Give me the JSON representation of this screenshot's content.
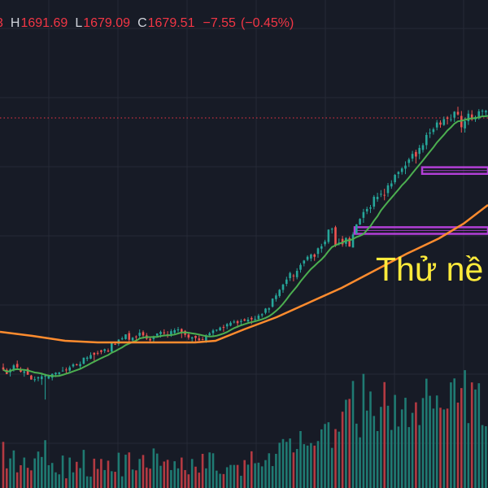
{
  "header": {
    "open_value_partial": "3",
    "high_label": "H",
    "high_value": "1691.69",
    "low_label": "L",
    "low_value": "1679.09",
    "close_label": "C",
    "close_value": "1679.51",
    "change": "−7.55",
    "change_percent": "(−0.45%)"
  },
  "annotation": "Thử nề",
  "colors": {
    "background": "#171b26",
    "grid": "#262a36",
    "up": "#26a69a",
    "down": "#ef5350",
    "up_volume": "#1f7a72",
    "down_volume": "#b33a42",
    "ma_short": "#4caf50",
    "ma_long": "#ff8c2e",
    "zone": "#b23fd6",
    "price_line": "#f23645",
    "annotation": "#ffeb3b"
  },
  "chart_data": {
    "type": "candlestick",
    "title": "",
    "ohlc_last": {
      "high": 1691.69,
      "low": 1679.09,
      "close": 1679.51,
      "change": -7.55,
      "change_percent": -0.45
    },
    "ylim": [
      1170,
      1720
    ],
    "current_price_line": 1679.51,
    "series": [
      {
        "name": "",
        "type": "candlestick",
        "candles": [
          [
            1203.27,
            1210.94,
            1196.28,
            1198.93
          ],
          [
            1198.41,
            1201.74,
            1189.82,
            1190.22
          ],
          [
            1193.58,
            1201.5,
            1185.33,
            1199.01
          ],
          [
            1198.55,
            1209.84,
            1194.96,
            1207.26
          ],
          [
            1210.05,
            1216.72,
            1200.72,
            1203.42
          ],
          [
            1200.3,
            1203.76,
            1193.23,
            1194.66
          ],
          [
            1192.47,
            1197.79,
            1184.96,
            1195.5
          ],
          [
            1200.39,
            1203.42,
            1188.61,
            1188.83
          ],
          [
            1187.31,
            1188.55,
            1179.15,
            1179.37
          ],
          [
            1179.81,
            1185.42,
            1174.75,
            1179.96
          ],
          [
            1181.55,
            1185.48,
            1175.94,
            1183.94
          ],
          [
            1180.14,
            1192.43,
            1168.87,
            1185.6
          ],
          [
            1185.49,
            1190.92,
            1140.0,
            1186.57
          ],
          [
            1181.35,
            1189.1,
            1180.04,
            1187.86
          ],
          [
            1183.06,
            1191.48,
            1177.61,
            1190.42
          ],
          [
            1189.68,
            1193.74,
            1184.26,
            1192.69
          ],
          [
            1190.32,
            1194.42,
            1187.25,
            1193.25
          ],
          [
            1196.44,
            1204.28,
            1195.28,
            1196.89
          ],
          [
            1198.99,
            1203.15,
            1191.09,
            1198.89
          ],
          [
            1197.0,
            1206.75,
            1194.75,
            1203.33
          ],
          [
            1205.27,
            1211.52,
            1202.73,
            1209.06
          ],
          [
            1209.13,
            1210.94,
            1206.7,
            1208.08
          ],
          [
            1205.68,
            1214.8,
            1199.66,
            1209.81
          ],
          [
            1210.44,
            1222.64,
            1209.12,
            1222.35
          ],
          [
            1220.11,
            1225.34,
            1215.41,
            1222.48
          ],
          [
            1220.51,
            1232.85,
            1219.37,
            1227.53
          ],
          [
            1232.06,
            1232.89,
            1216.42,
            1228.1
          ],
          [
            1231.88,
            1235.97,
            1227.03,
            1230.73
          ],
          [
            1236.93,
            1237.91,
            1229.12,
            1233.7
          ],
          [
            1235.7,
            1240.22,
            1231.49,
            1238.93
          ],
          [
            1236.31,
            1240.45,
            1233.02,
            1234.5
          ],
          [
            1234.29,
            1252.54,
            1232.96,
            1250.79
          ],
          [
            1249.31,
            1254.15,
            1247.4,
            1249.19
          ],
          [
            1249.63,
            1258.89,
            1245.6,
            1257.74
          ],
          [
            1258.44,
            1263.97,
            1256.8,
            1260.35
          ],
          [
            1259.01,
            1268.34,
            1257.77,
            1268.25
          ],
          [
            1270.66,
            1275.32,
            1253.29,
            1257.62
          ],
          [
            1256.48,
            1263.05,
            1252.45,
            1261.54
          ],
          [
            1264.07,
            1266.24,
            1251.8,
            1263.57
          ],
          [
            1265.41,
            1277.93,
            1260.48,
            1271.4
          ],
          [
            1272.64,
            1275.98,
            1259.58,
            1266.19
          ],
          [
            1266.15,
            1270.89,
            1257.23,
            1259.61
          ],
          [
            1259.5,
            1263.39,
            1253.76,
            1256.31
          ],
          [
            1259.05,
            1265.77,
            1251.71,
            1263.82
          ],
          [
            1265.72,
            1270.3,
            1262.42,
            1269.91
          ],
          [
            1268.69,
            1275.65,
            1261.99,
            1273.19
          ],
          [
            1272.08,
            1278.18,
            1265.09,
            1270.41
          ],
          [
            1268.14,
            1274.54,
            1261.63,
            1267.67
          ],
          [
            1268.45,
            1278.52,
            1263.33,
            1274.49
          ],
          [
            1271.2,
            1280.18,
            1268.09,
            1276.37
          ],
          [
            1276.23,
            1282.72,
            1272.48,
            1278.02
          ],
          [
            1278.73,
            1280.13,
            1260.9,
            1273.04
          ],
          [
            1274.96,
            1276.75,
            1262.73,
            1267.3
          ],
          [
            1267.92,
            1272.82,
            1257.87,
            1262.07
          ],
          [
            1259.87,
            1263.78,
            1250.84,
            1262.41
          ],
          [
            1265.21,
            1266.05,
            1254.57,
            1261.03
          ],
          [
            1260.29,
            1266.63,
            1255.36,
            1256.65
          ],
          [
            1258.85,
            1263.24,
            1256.35,
            1258.18
          ],
          [
            1255.14,
            1268.52,
            1251.49,
            1265.29
          ],
          [
            1266.79,
            1273.2,
            1263.48,
            1270.32
          ],
          [
            1270.75,
            1278.72,
            1264.84,
            1275.83
          ],
          [
            1275.84,
            1277.91,
            1273.51,
            1277.36
          ],
          [
            1276.12,
            1283.48,
            1275.1,
            1281.72
          ],
          [
            1282.71,
            1287.06,
            1273.4,
            1281.67
          ],
          [
            1283.92,
            1290.48,
            1278.34,
            1288.45
          ],
          [
            1285.34,
            1294.25,
            1284.1,
            1291.16
          ],
          [
            1292.31,
            1296.72,
            1289.69,
            1293.3
          ],
          [
            1294.21,
            1296.54,
            1281.37,
            1290.28
          ],
          [
            1292.68,
            1298.42,
            1286.2,
            1294.55
          ],
          [
            1297.7,
            1299.69,
            1293.92,
            1295.27
          ],
          [
            1293.71,
            1302.02,
            1290.76,
            1297.26
          ],
          [
            1300.51,
            1303.68,
            1288.1,
            1297.71
          ],
          [
            1297.58,
            1304.64,
            1293.21,
            1298.54
          ],
          [
            1298.42,
            1308.66,
            1297.16,
            1305.13
          ],
          [
            1305.57,
            1309.87,
            1301.53,
            1307.91
          ],
          [
            1310.73,
            1319.98,
            1307.55,
            1318.94
          ],
          [
            1316.84,
            1321.42,
            1310.64,
            1319.37
          ],
          [
            1322.71,
            1339.14,
            1320.82,
            1338.53
          ],
          [
            1337.6,
            1349.12,
            1332.66,
            1344.86
          ],
          [
            1343.69,
            1357.47,
            1340.45,
            1355.87
          ],
          [
            1355.68,
            1367.71,
            1350.05,
            1366.11
          ],
          [
            1367.53,
            1381.62,
            1362.68,
            1376.1
          ],
          [
            1378.84,
            1391.48,
            1373.21,
            1388.87
          ],
          [
            1383.94,
            1387.14,
            1372.59,
            1382.72
          ],
          [
            1380.7,
            1398.28,
            1376.53,
            1393.19
          ],
          [
            1395.33,
            1408.42,
            1389.67,
            1404.78
          ],
          [
            1407.75,
            1414.55,
            1401.98,
            1413.44
          ],
          [
            1415.01,
            1423.77,
            1412.23,
            1420.83
          ],
          [
            1417.54,
            1427.19,
            1411.93,
            1425.26
          ],
          [
            1425.38,
            1427.41,
            1412.8,
            1420.76
          ],
          [
            1426.59,
            1439.08,
            1418.94,
            1437.55
          ],
          [
            1436.82,
            1446.35,
            1428.92,
            1441.54
          ],
          [
            1445.44,
            1454.27,
            1441.07,
            1450.7
          ],
          [
            1450.01,
            1474.95,
            1446.45,
            1474.15
          ],
          [
            1474.25,
            1478.27,
            1466.51,
            1475.93
          ],
          [
            1479.01,
            1482.08,
            1440.12,
            1443.91
          ],
          [
            1447.24,
            1456.81,
            1443.12,
            1448.77
          ],
          [
            1456.09,
            1461.76,
            1440.61,
            1445.22
          ],
          [
            1446.33,
            1459.46,
            1440.63,
            1457.92
          ],
          [
            1457.36,
            1460.79,
            1440.68,
            1440.93
          ],
          [
            1439.13,
            1469.18,
            1438.74,
            1464.88
          ],
          [
            1467.24,
            1485.23,
            1465.31,
            1484.55
          ],
          [
            1484.51,
            1496.73,
            1483.08,
            1495.36
          ],
          [
            1497.48,
            1515.09,
            1487.56,
            1508.81
          ],
          [
            1510.14,
            1519.28,
            1504.75,
            1514.87
          ],
          [
            1515.56,
            1522.81,
            1506.91,
            1517.93
          ],
          [
            1519.59,
            1542.2,
            1514.21,
            1538.88
          ],
          [
            1534.14,
            1546.75,
            1529.06,
            1538.85
          ],
          [
            1543.64,
            1552.02,
            1538.34,
            1544.64
          ],
          [
            1542.67,
            1554.64,
            1531.93,
            1541.19
          ],
          [
            1546.22,
            1565.96,
            1539.09,
            1561.4
          ],
          [
            1559.17,
            1571.42,
            1554.59,
            1565.14
          ],
          [
            1567.52,
            1583.76,
            1563.64,
            1581.96
          ],
          [
            1583.74,
            1589.41,
            1575.27,
            1587.67
          ],
          [
            1587.7,
            1597.26,
            1582.52,
            1594.61
          ],
          [
            1594.21,
            1608.57,
            1583.44,
            1600.24
          ],
          [
            1605.46,
            1615.69,
            1597.76,
            1612.28
          ],
          [
            1614.08,
            1629.2,
            1608.29,
            1623.25
          ],
          [
            1627.05,
            1631.45,
            1604.34,
            1618.03
          ],
          [
            1623.32,
            1640.94,
            1612.67,
            1634.98
          ],
          [
            1631.04,
            1644.59,
            1626.09,
            1640.43
          ],
          [
            1640.51,
            1665.46,
            1632.37,
            1660.52
          ],
          [
            1663.22,
            1673.06,
            1654.5,
            1665.14
          ],
          [
            1666.28,
            1675.24,
            1661.17,
            1671.79
          ],
          [
            1675.26,
            1689.98,
            1669.62,
            1685.03
          ],
          [
            1684.98,
            1689.49,
            1674.72,
            1680.73
          ],
          [
            1680.18,
            1696.91,
            1678.39,
            1691.68
          ],
          [
            1695.06,
            1697.74,
            1681.18,
            1692.36
          ],
          [
            1690.1,
            1701.12,
            1686.56,
            1691.41
          ],
          [
            1694.63,
            1707.37,
            1686.05,
            1706.19
          ],
          [
            1705.96,
            1715.96,
            1698.65,
            1700.89
          ],
          [
            1697.98,
            1707.59,
            1665.17,
            1675.71
          ],
          [
            1673.43,
            1694.57,
            1665.17,
            1687.44
          ],
          [
            1687.68,
            1709.29,
            1680.21,
            1702.35
          ],
          [
            1700.86,
            1709.21,
            1688.09,
            1690.85
          ],
          [
            1691.38,
            1698.68,
            1686.26,
            1695.77
          ],
          [
            1693.19,
            1711.34,
            1690.69,
            1707.07
          ],
          [
            1706.47,
            1711.04,
            1697.69,
            1708.2
          ],
          [
            1704.89,
            1710.04,
            1695.38,
            1708.03
          ],
          [
            1708.86,
            1714.09,
            1703.38,
            1708.92
          ],
          [
            1698.07,
            1707.91,
            1693.43,
            1694.1
          ],
          [
            1687.06,
            1691.69,
            1679.09,
            1679.51
          ]
        ]
      },
      {
        "name": "",
        "type": "line",
        "color": "#4caf50",
        "values": "moving average of close (short)"
      },
      {
        "name": "",
        "type": "line",
        "color": "#ff8c2e",
        "values": "moving average of close (long)"
      },
      {
        "name": "",
        "type": "bar",
        "role": "volume",
        "values": [
          1.62,
          0.69,
          1.04,
          1.32,
          0.55,
          0.8,
          1.07,
          0.71,
          0.62,
          1.04,
          1.28,
          1.09,
          1.68,
          0.8,
          0.88,
          0.55,
          0.48,
          1.14,
          0.34,
          1.07,
          0.55,
          0.92,
          0.7,
          1.34,
          0.41,
          0.4,
          1.03,
          0.67,
          1.02,
          0.63,
          0.96,
          0.59,
          0.57,
          1.24,
          0.41,
          1.17,
          1.25,
          0.65,
          0.62,
          1.02,
          1.16,
          0.72,
          0.68,
          1.39,
          1.21,
          0.78,
          0.93,
          0.99,
          0.63,
          0.94,
          0.69,
          1.07,
          0.63,
          0.48,
          1.02,
          0.75,
          0.54,
          1.2,
          0.69,
          1.25,
          1.22,
          0.61,
          0.5,
          0.49,
          0.73,
          0.81,
          0.81,
          0.81,
          0.43,
          0.98,
          0.82,
          1.29,
          0.87,
          0.89,
          0.76,
          0.98,
          1.22,
          0.77,
          1.2,
          1.59,
          1.72,
          1.62,
          1.74,
          1.25,
          1.37,
          2.0,
          1.54,
          1.49,
          1.58,
          1.49,
          1.65,
          2.06,
          2.25,
          2.31,
          1.41,
          2.07,
          1.98,
          2.68,
          3.1,
          3.13,
          3.76,
          2.26,
          1.78,
          4.01,
          2.72,
          3.39,
          2.53,
          2.0,
          2.85,
          3.72,
          2.89,
          2.04,
          3.27,
          2.16,
          2.76,
          3.17,
          2.14,
          2.64,
          3.01,
          2.21,
          3.16,
          3.84,
          3.24,
          2.79,
          3.25,
          2.82,
          2.76,
          2.79,
          3.71,
          3.85,
          3.0,
          3.51,
          4.14,
          2.28,
          3.71,
          3.46,
          3.68,
          2.21,
          2.17,
          2.53,
          2.98,
          2.99,
          3.2,
          2.23,
          2.84
        ]
      },
      {
        "name": "",
        "type": "zone",
        "color": "#b23fd6",
        "ranges": [
          [
            1584,
            1597
          ],
          [
            1466,
            1479
          ]
        ]
      }
    ]
  }
}
